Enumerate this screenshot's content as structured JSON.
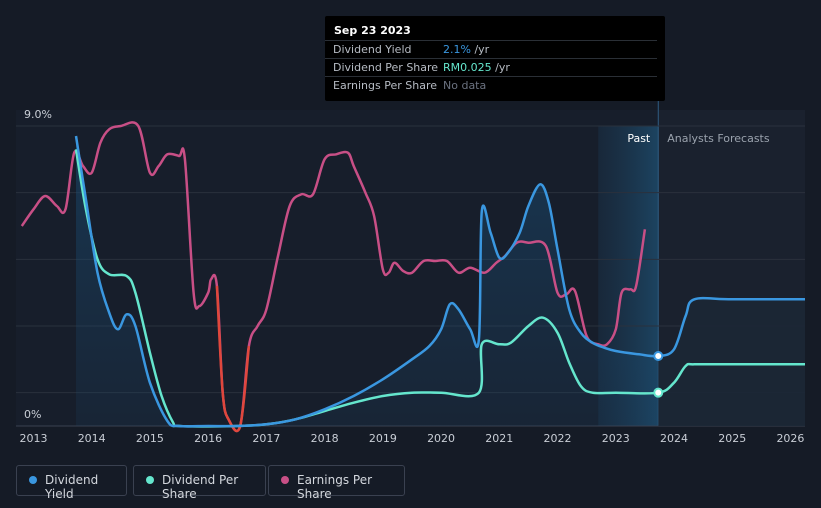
{
  "tooltip": {
    "date": "Sep 23 2023",
    "rows": [
      {
        "label": "Dividend Yield",
        "value": "2.1%",
        "unit": " /yr",
        "color": "#3a97e0"
      },
      {
        "label": "Dividend Per Share",
        "value": "RM0.025",
        "unit": " /yr",
        "color": "#65e6cd"
      },
      {
        "label": "Earnings Per Share",
        "value": "No data",
        "unit": "",
        "color": "#6b7280"
      }
    ]
  },
  "legend": [
    {
      "label": "Dividend Yield",
      "color": "#3a97e0"
    },
    {
      "label": "Dividend Per Share",
      "color": "#65e6cd"
    },
    {
      "label": "Earnings Per Share",
      "color": "#c84f86"
    }
  ],
  "chart_data": {
    "type": "line",
    "past_label": "Past",
    "forecast_label": "Analysts Forecasts",
    "y_tick_labels": [
      "9.0%",
      "0%"
    ],
    "x_tick_labels": [
      "2013",
      "2014",
      "2015",
      "2016",
      "2017",
      "2018",
      "2019",
      "2020",
      "2021",
      "2022",
      "2023",
      "2024",
      "2025",
      "2026"
    ],
    "xlim": [
      2012.7,
      2026.25
    ],
    "ylim_yield_pct": [
      0,
      9.0
    ],
    "forecast_start": 2023.73,
    "highlight_start": 2022.7,
    "colors": {
      "yield": "#3a97e0",
      "dps": "#65e6cd",
      "eps": "#c84f86",
      "eps_negative": "#e0473c"
    },
    "series": [
      {
        "name": "Dividend Yield",
        "key": "yield",
        "points": [
          [
            2013.73,
            8.7
          ],
          [
            2013.9,
            6.8
          ],
          [
            2014.1,
            4.6
          ],
          [
            2014.3,
            3.4
          ],
          [
            2014.45,
            2.9
          ],
          [
            2014.6,
            3.35
          ],
          [
            2014.75,
            3.0
          ],
          [
            2015.0,
            1.3
          ],
          [
            2015.3,
            0.15
          ],
          [
            2015.5,
            0.0
          ],
          [
            2016.0,
            0.0
          ],
          [
            2016.5,
            0.0
          ],
          [
            2017.0,
            0.05
          ],
          [
            2017.5,
            0.2
          ],
          [
            2018.0,
            0.5
          ],
          [
            2018.5,
            0.9
          ],
          [
            2019.0,
            1.4
          ],
          [
            2019.5,
            2.0
          ],
          [
            2019.8,
            2.4
          ],
          [
            2020.0,
            2.9
          ],
          [
            2020.15,
            3.65
          ],
          [
            2020.3,
            3.5
          ],
          [
            2020.5,
            2.9
          ],
          [
            2020.65,
            2.6
          ],
          [
            2020.7,
            6.45
          ],
          [
            2020.85,
            5.8
          ],
          [
            2021.0,
            5.05
          ],
          [
            2021.15,
            5.2
          ],
          [
            2021.35,
            5.8
          ],
          [
            2021.5,
            6.6
          ],
          [
            2021.7,
            7.25
          ],
          [
            2021.85,
            6.7
          ],
          [
            2022.0,
            5.3
          ],
          [
            2022.2,
            3.5
          ],
          [
            2022.4,
            2.8
          ],
          [
            2022.6,
            2.5
          ],
          [
            2022.8,
            2.35
          ],
          [
            2023.0,
            2.25
          ],
          [
            2023.4,
            2.15
          ],
          [
            2023.73,
            2.1
          ],
          [
            2024.0,
            2.3
          ],
          [
            2024.2,
            3.3
          ],
          [
            2024.35,
            3.8
          ],
          [
            2025.0,
            3.8
          ],
          [
            2026.25,
            3.8
          ]
        ]
      },
      {
        "name": "Dividend Per Share",
        "key": "dps",
        "points": [
          [
            2013.73,
            8.3
          ],
          [
            2013.9,
            6.5
          ],
          [
            2014.1,
            5.0
          ],
          [
            2014.3,
            4.55
          ],
          [
            2014.6,
            4.5
          ],
          [
            2014.75,
            4.0
          ],
          [
            2015.0,
            2.2
          ],
          [
            2015.2,
            0.9
          ],
          [
            2015.4,
            0.1
          ],
          [
            2015.5,
            0.0
          ],
          [
            2016.5,
            0.0
          ],
          [
            2017.0,
            0.05
          ],
          [
            2017.5,
            0.2
          ],
          [
            2018.0,
            0.45
          ],
          [
            2018.5,
            0.7
          ],
          [
            2019.0,
            0.9
          ],
          [
            2019.5,
            1.0
          ],
          [
            2020.0,
            1.0
          ],
          [
            2020.65,
            1.0
          ],
          [
            2020.7,
            2.45
          ],
          [
            2021.0,
            2.45
          ],
          [
            2021.2,
            2.5
          ],
          [
            2021.5,
            3.0
          ],
          [
            2021.75,
            3.25
          ],
          [
            2022.0,
            2.8
          ],
          [
            2022.2,
            1.9
          ],
          [
            2022.4,
            1.2
          ],
          [
            2022.6,
            1.0
          ],
          [
            2023.0,
            1.0
          ],
          [
            2023.73,
            1.0
          ],
          [
            2024.0,
            1.3
          ],
          [
            2024.2,
            1.8
          ],
          [
            2024.35,
            1.85
          ],
          [
            2025.0,
            1.85
          ],
          [
            2026.25,
            1.85
          ]
        ]
      },
      {
        "name": "Earnings Per Share",
        "key": "eps",
        "points": [
          [
            2012.8,
            6.0
          ],
          [
            2013.0,
            6.5
          ],
          [
            2013.2,
            6.9
          ],
          [
            2013.4,
            6.6
          ],
          [
            2013.55,
            6.5
          ],
          [
            2013.7,
            8.2
          ],
          [
            2013.85,
            7.8
          ],
          [
            2014.0,
            7.6
          ],
          [
            2014.15,
            8.5
          ],
          [
            2014.3,
            8.9
          ],
          [
            2014.5,
            9.0
          ],
          [
            2014.8,
            9.0
          ],
          [
            2015.0,
            7.6
          ],
          [
            2015.15,
            7.8
          ],
          [
            2015.3,
            8.15
          ],
          [
            2015.5,
            8.1
          ],
          [
            2015.6,
            8.0
          ],
          [
            2015.75,
            4.0
          ],
          [
            2015.85,
            3.6
          ],
          [
            2016.0,
            4.0
          ],
          [
            2016.05,
            4.4
          ],
          [
            2016.15,
            4.2
          ],
          [
            2016.25,
            1.0
          ],
          [
            2016.35,
            0.2
          ],
          [
            2016.55,
            0.0
          ],
          [
            2016.7,
            2.4
          ],
          [
            2016.85,
            3.0
          ],
          [
            2017.0,
            3.5
          ],
          [
            2017.2,
            5.1
          ],
          [
            2017.4,
            6.6
          ],
          [
            2017.6,
            6.95
          ],
          [
            2017.8,
            6.95
          ],
          [
            2018.0,
            8.0
          ],
          [
            2018.2,
            8.15
          ],
          [
            2018.4,
            8.2
          ],
          [
            2018.5,
            7.8
          ],
          [
            2018.7,
            7.0
          ],
          [
            2018.85,
            6.3
          ],
          [
            2019.0,
            4.7
          ],
          [
            2019.1,
            4.6
          ],
          [
            2019.2,
            4.9
          ],
          [
            2019.35,
            4.65
          ],
          [
            2019.5,
            4.6
          ],
          [
            2019.7,
            4.95
          ],
          [
            2019.9,
            4.95
          ],
          [
            2020.1,
            4.95
          ],
          [
            2020.3,
            4.6
          ],
          [
            2020.5,
            4.75
          ],
          [
            2020.75,
            4.6
          ],
          [
            2020.95,
            4.9
          ],
          [
            2021.1,
            5.1
          ],
          [
            2021.3,
            5.5
          ],
          [
            2021.5,
            5.5
          ],
          [
            2021.8,
            5.4
          ],
          [
            2022.0,
            4.0
          ],
          [
            2022.15,
            3.95
          ],
          [
            2022.3,
            4.05
          ],
          [
            2022.5,
            2.7
          ],
          [
            2022.7,
            2.45
          ],
          [
            2022.85,
            2.45
          ],
          [
            2023.0,
            2.9
          ],
          [
            2023.1,
            4.0
          ],
          [
            2023.25,
            4.1
          ],
          [
            2023.35,
            4.2
          ],
          [
            2023.5,
            5.9
          ]
        ]
      }
    ]
  }
}
